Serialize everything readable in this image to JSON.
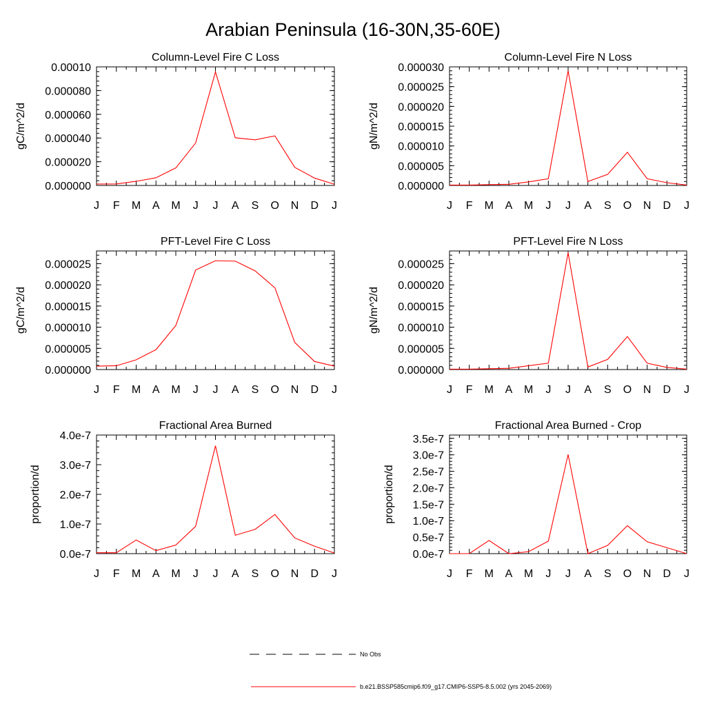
{
  "figure_title": "Arabian Peninsula (16-30N,35-60E)",
  "series_color": "#ff0000",
  "chart_data": [
    {
      "type": "line",
      "title": "Column-Level Fire C Loss",
      "ylabel": "gC/m^2/d",
      "categories": [
        "J",
        "F",
        "M",
        "A",
        "M",
        "J",
        "J",
        "A",
        "S",
        "O",
        "N",
        "D",
        "J"
      ],
      "ylim": [
        0,
        0.0001
      ],
      "yticks": [
        0,
        2e-05,
        4e-05,
        6e-05,
        8e-05,
        0.0001
      ],
      "ytick_labels": [
        "0.000000",
        "0.000020",
        "0.000040",
        "0.000060",
        "0.000080",
        "0.00010"
      ],
      "series": [
        {
          "values": [
            1.2e-06,
            1.3e-06,
            3.5e-06,
            6.5e-06,
            1.48e-05,
            3.58e-05,
            9.58e-05,
            4.02e-05,
            3.85e-05,
            4.18e-05,
            1.53e-05,
            6.2e-06,
            1e-06
          ]
        }
      ]
    },
    {
      "type": "line",
      "title": "Column-Level Fire N Loss",
      "ylabel": "gN/m^2/d",
      "categories": [
        "J",
        "F",
        "M",
        "A",
        "M",
        "J",
        "J",
        "A",
        "S",
        "O",
        "N",
        "D",
        "J"
      ],
      "ylim": [
        0,
        3e-05
      ],
      "yticks": [
        0,
        5e-06,
        1e-05,
        1.5e-05,
        2e-05,
        2.5e-05,
        3e-05
      ],
      "ytick_labels": [
        "0.000000",
        "0.000005",
        "0.000010",
        "0.000015",
        "0.000020",
        "0.000025",
        "0.000030"
      ],
      "series": [
        {
          "values": [
            1e-07,
            1e-07,
            2e-07,
            3e-07,
            9e-07,
            1.7e-06,
            2.9e-05,
            1e-06,
            2.8e-06,
            8.4e-06,
            1.7e-06,
            7e-07,
            1e-07
          ]
        }
      ]
    },
    {
      "type": "line",
      "title": "PFT-Level Fire C Loss",
      "ylabel": "gC/m^2/d",
      "categories": [
        "J",
        "F",
        "M",
        "A",
        "M",
        "J",
        "J",
        "A",
        "S",
        "O",
        "N",
        "D",
        "J"
      ],
      "ylim": [
        0,
        2.8e-05
      ],
      "yticks": [
        0,
        5e-06,
        1e-05,
        1.5e-05,
        2e-05,
        2.5e-05
      ],
      "ytick_labels": [
        "0.000000",
        "0.000005",
        "0.000010",
        "0.000015",
        "0.000020",
        "0.000025"
      ],
      "series": [
        {
          "values": [
            8e-07,
            9e-07,
            2.3e-06,
            4.7e-06,
            1.04e-05,
            2.35e-05,
            2.57e-05,
            2.56e-05,
            2.33e-05,
            1.93e-05,
            6.4e-06,
            1.9e-06,
            8e-07
          ]
        }
      ]
    },
    {
      "type": "line",
      "title": "PFT-Level Fire N Loss",
      "ylabel": "gN/m^2/d",
      "categories": [
        "J",
        "F",
        "M",
        "A",
        "M",
        "J",
        "J",
        "A",
        "S",
        "O",
        "N",
        "D",
        "J"
      ],
      "ylim": [
        0,
        2.8e-05
      ],
      "yticks": [
        0,
        5e-06,
        1e-05,
        1.5e-05,
        2e-05,
        2.5e-05
      ],
      "ytick_labels": [
        "0.000000",
        "0.000005",
        "0.000010",
        "0.000015",
        "0.000020",
        "0.000025"
      ],
      "series": [
        {
          "values": [
            1e-07,
            1e-07,
            2e-07,
            3e-07,
            9e-07,
            1.5e-06,
            2.76e-05,
            6e-07,
            2.4e-06,
            7.8e-06,
            1.5e-06,
            5e-07,
            1e-07
          ]
        }
      ]
    },
    {
      "type": "line",
      "title": "Fractional Area Burned",
      "ylabel": "proportion/d",
      "categories": [
        "J",
        "F",
        "M",
        "A",
        "M",
        "J",
        "J",
        "A",
        "S",
        "O",
        "N",
        "D",
        "J"
      ],
      "ylim": [
        0,
        4e-07
      ],
      "yticks": [
        0,
        1e-07,
        2e-07,
        3e-07,
        4e-07
      ],
      "ytick_labels": [
        "0.0e-7",
        "1.0e-7",
        "2.0e-7",
        "3.0e-7",
        "4.0e-7"
      ],
      "series": [
        {
          "values": [
            3e-09,
            3e-09,
            4.6e-08,
            1e-08,
            2.9e-08,
            9.2e-08,
            3.64e-07,
            6.2e-08,
            8.2e-08,
            1.32e-07,
            5.3e-08,
            2.5e-08,
            2e-09
          ]
        }
      ]
    },
    {
      "type": "line",
      "title": "Fractional Area Burned - Crop",
      "ylabel": "proportion/d",
      "categories": [
        "J",
        "F",
        "M",
        "A",
        "M",
        "J",
        "J",
        "A",
        "S",
        "O",
        "N",
        "D",
        "J"
      ],
      "ylim": [
        0,
        3.6e-07
      ],
      "yticks": [
        0,
        5e-08,
        1e-07,
        1.5e-07,
        2e-07,
        2.5e-07,
        3e-07,
        3.5e-07
      ],
      "ytick_labels": [
        "0.0e-7",
        "0.5e-7",
        "1.0e-7",
        "1.5e-7",
        "2.0e-7",
        "2.5e-7",
        "3.0e-7",
        "3.5e-7"
      ],
      "series": [
        {
          "values": [
            0,
            0,
            4e-08,
            0,
            6e-09,
            3.8e-08,
            3.01e-07,
            0,
            2.5e-08,
            8.5e-08,
            3.6e-08,
            1.8e-08,
            0
          ]
        }
      ]
    }
  ],
  "legend": {
    "no_obs_label": "No Obs",
    "case_label": "b.e21.BSSP585cmip6.f09_g17.CMIP6-SSP5-8.5.002 (yrs 2045-2069)"
  }
}
